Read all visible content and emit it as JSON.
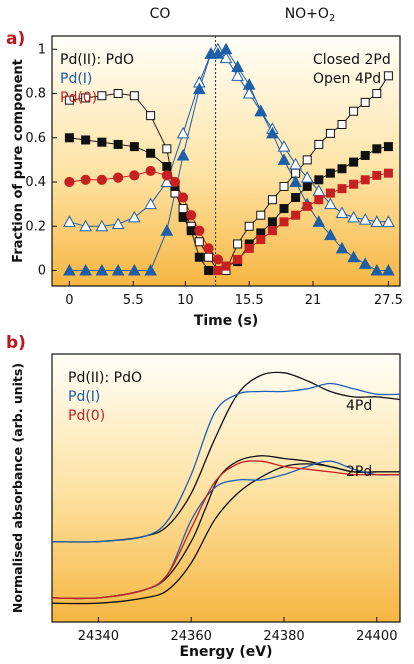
{
  "chart_data": [
    {
      "panel_label": "a)",
      "type": "line",
      "xlabel": "Time (s)",
      "ylabel": "Fraction of pure component",
      "top_labels": [
        "CO",
        "NO+O2"
      ],
      "annotations": [
        "Closed 2Pd",
        "Open 4Pd"
      ],
      "legend": [
        "Pd(II): PdO",
        "Pd(I)",
        "Pd(0)"
      ],
      "xticks": [
        "0",
        "5.5",
        "10",
        "15.5",
        "21",
        "27.5"
      ],
      "yticks": [
        "0",
        "0.2",
        "0.4",
        "0.6",
        "0.8",
        "1"
      ],
      "xlim": [
        -1.5,
        28.5
      ],
      "ylim": [
        -0.07,
        1.06
      ],
      "divider_x": 12.6,
      "series": [
        {
          "name": "Pd(II): PdO",
          "line": "#222222",
          "marker": "square-open",
          "x": [
            0,
            1.4,
            2.8,
            4.2,
            5.6,
            7.0,
            8.4,
            9.1,
            9.8,
            10.5,
            11.2,
            12.0,
            12.8,
            13.5,
            14.5,
            15.5,
            16.5,
            17.5,
            18.5,
            19.5,
            20.5,
            21.5,
            22.5,
            23.5,
            24.5,
            25.5,
            26.5,
            27.5
          ],
          "y": [
            0.77,
            0.78,
            0.79,
            0.8,
            0.79,
            0.7,
            0.55,
            0.35,
            0.28,
            0.2,
            0.13,
            0.06,
            0.0,
            0.0,
            0.12,
            0.2,
            0.25,
            0.32,
            0.38,
            0.44,
            0.5,
            0.57,
            0.62,
            0.66,
            0.72,
            0.76,
            0.8,
            0.88
          ]
        },
        {
          "name": "Pd(II): PdO closed",
          "line": "#222222",
          "marker": "square",
          "x": [
            0,
            1.4,
            2.8,
            4.2,
            5.6,
            7.0,
            8.4,
            9.1,
            9.8,
            10.5,
            11.2,
            12.0,
            12.8,
            13.5,
            14.5,
            15.5,
            16.5,
            17.5,
            18.5,
            19.5,
            20.5,
            21.5,
            22.5,
            23.5,
            24.5,
            25.5,
            26.5,
            27.5
          ],
          "y": [
            0.6,
            0.59,
            0.58,
            0.57,
            0.56,
            0.53,
            0.47,
            0.38,
            0.24,
            0.18,
            0.06,
            0.0,
            0.0,
            0.02,
            0.04,
            0.12,
            0.17,
            0.22,
            0.28,
            0.33,
            0.38,
            0.41,
            0.44,
            0.46,
            0.49,
            0.52,
            0.55,
            0.56
          ]
        },
        {
          "name": "Pd(I) open",
          "line": "#1d5fa8",
          "marker": "triangle-open",
          "x": [
            0,
            1.4,
            2.8,
            4.2,
            5.6,
            7.0,
            8.4,
            9.8,
            11.2,
            12.2,
            12.8,
            13.5,
            14.5,
            15.5,
            16.5,
            17.5,
            18.5,
            19.5,
            20.5,
            21.5,
            22.5,
            23.5,
            24.5,
            25.5,
            26.5,
            27.5
          ],
          "y": [
            0.22,
            0.2,
            0.2,
            0.21,
            0.24,
            0.3,
            0.4,
            0.62,
            0.85,
            0.98,
            1.0,
            0.96,
            0.88,
            0.8,
            0.72,
            0.64,
            0.56,
            0.48,
            0.42,
            0.36,
            0.3,
            0.26,
            0.24,
            0.23,
            0.22,
            0.22
          ]
        },
        {
          "name": "Pd(I)",
          "line": "#1d5fa8",
          "marker": "triangle",
          "x": [
            0,
            1.4,
            2.8,
            4.2,
            5.6,
            7.0,
            8.4,
            9.8,
            11.2,
            12.2,
            12.8,
            13.5,
            14.5,
            15.5,
            16.5,
            17.5,
            18.5,
            19.5,
            20.5,
            21.5,
            22.5,
            23.5,
            24.5,
            25.5,
            26.5,
            27.5
          ],
          "y": [
            0.0,
            0.0,
            0.0,
            0.0,
            0.0,
            0.0,
            0.18,
            0.52,
            0.82,
            0.98,
            0.98,
            1.0,
            0.92,
            0.84,
            0.72,
            0.62,
            0.5,
            0.4,
            0.3,
            0.22,
            0.16,
            0.1,
            0.06,
            0.03,
            0.0,
            0.0
          ]
        },
        {
          "name": "Pd(0)",
          "line": "#c62020",
          "marker": "circle",
          "x": [
            0,
            1.4,
            2.8,
            4.2,
            5.6,
            7.0,
            8.4,
            9.1,
            9.8,
            10.5,
            11.2,
            12.0,
            12.8
          ],
          "y": [
            0.4,
            0.41,
            0.41,
            0.42,
            0.43,
            0.45,
            0.43,
            0.4,
            0.33,
            0.25,
            0.18,
            0.1,
            0.05
          ]
        },
        {
          "name": "Pd(0) NO+O2",
          "line": "#c62020",
          "marker": "square",
          "x": [
            12.8,
            13.5,
            14.5,
            15.5,
            16.5,
            17.5,
            18.5,
            19.5,
            20.5,
            21.5,
            22.5,
            23.5,
            24.5,
            25.5,
            26.5,
            27.5
          ],
          "y": [
            0.0,
            0.02,
            0.05,
            0.1,
            0.14,
            0.18,
            0.22,
            0.25,
            0.29,
            0.32,
            0.35,
            0.37,
            0.39,
            0.41,
            0.43,
            0.44
          ]
        }
      ]
    },
    {
      "panel_label": "b)",
      "type": "line",
      "xlabel": "Energy (eV)",
      "ylabel": "Normalised absorbance (arb. units)",
      "legend": [
        "Pd(II): PdO",
        "Pd(I)",
        "Pd(0)"
      ],
      "annotations": [
        "4Pd",
        "2Pd"
      ],
      "xticks": [
        "24340",
        "24360",
        "24380",
        "24400"
      ],
      "xlim": [
        24330,
        24405
      ],
      "ylim": [
        0,
        1
      ],
      "series": [
        {
          "name": "4Pd Pd(II): PdO",
          "line": "#111111",
          "x": [
            24330,
            24340,
            24350,
            24355,
            24360,
            24365,
            24370,
            24375,
            24380,
            24385,
            24390,
            24395,
            24400,
            24405
          ],
          "y": [
            0.3,
            0.3,
            0.32,
            0.36,
            0.48,
            0.68,
            0.85,
            0.92,
            0.93,
            0.9,
            0.86,
            0.84,
            0.84,
            0.83
          ]
        },
        {
          "name": "4Pd Pd(I)",
          "line": "#2060b8",
          "x": [
            24330,
            24340,
            24350,
            24355,
            24360,
            24365,
            24370,
            24375,
            24380,
            24385,
            24390,
            24395,
            24400,
            24405
          ],
          "y": [
            0.3,
            0.3,
            0.32,
            0.38,
            0.55,
            0.78,
            0.85,
            0.86,
            0.86,
            0.87,
            0.89,
            0.87,
            0.85,
            0.85
          ]
        },
        {
          "name": "2Pd Pd(II): PdO",
          "line": "#111111",
          "x": [
            24330,
            24340,
            24350,
            24355,
            24360,
            24363,
            24366,
            24370,
            24375,
            24380,
            24385,
            24390,
            24395,
            24400,
            24405
          ],
          "y": [
            0.09,
            0.09,
            0.12,
            0.17,
            0.3,
            0.42,
            0.54,
            0.6,
            0.62,
            0.61,
            0.6,
            0.58,
            0.56,
            0.56,
            0.56
          ]
        },
        {
          "name": "2Pd Pd(II): PdO lower",
          "line": "#111111",
          "x": [
            24330,
            24340,
            24350,
            24355,
            24360,
            24365,
            24370,
            24375,
            24380,
            24385,
            24390,
            24395,
            24400,
            24405
          ],
          "y": [
            0.07,
            0.07,
            0.09,
            0.12,
            0.22,
            0.38,
            0.48,
            0.54,
            0.58,
            0.59,
            0.58,
            0.56,
            0.56,
            0.56
          ]
        },
        {
          "name": "2Pd Pd(I)",
          "line": "#2060b8",
          "x": [
            24330,
            24340,
            24350,
            24355,
            24360,
            24365,
            24370,
            24375,
            24380,
            24385,
            24390,
            24395,
            24400,
            24405
          ],
          "y": [
            0.09,
            0.09,
            0.12,
            0.18,
            0.38,
            0.5,
            0.53,
            0.53,
            0.55,
            0.58,
            0.6,
            0.57,
            0.55,
            0.55
          ]
        },
        {
          "name": "2Pd Pd(0)",
          "line": "#c62020",
          "x": [
            24330,
            24340,
            24350,
            24355,
            24360,
            24365,
            24370,
            24375,
            24380,
            24385,
            24390,
            24395,
            24400,
            24405
          ],
          "y": [
            0.09,
            0.09,
            0.12,
            0.18,
            0.35,
            0.52,
            0.59,
            0.6,
            0.58,
            0.57,
            0.56,
            0.55,
            0.55,
            0.55
          ]
        }
      ]
    }
  ],
  "colors": {
    "bg_top": "#fffdf6",
    "bg_bottom": "#f6b642",
    "pdii": "#111111",
    "pdi": "#1d5fa8",
    "pd0": "#c62020",
    "label": "#c0141e"
  }
}
